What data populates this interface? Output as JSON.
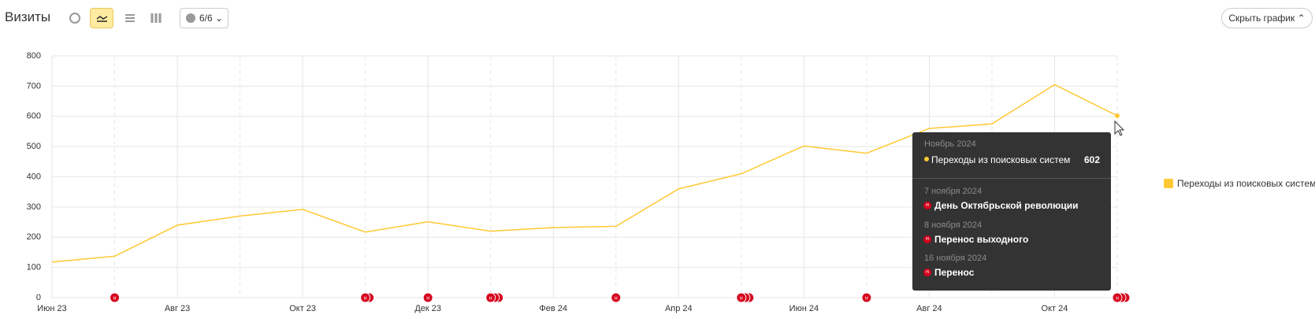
{
  "header": {
    "title": "Визиты",
    "comments": "6/6",
    "hide_button": "Скрыть график"
  },
  "chart_data": {
    "type": "line",
    "categories": [
      "Июн 23",
      null,
      "Авг 23",
      null,
      "Окт 23",
      null,
      "Дек 23",
      null,
      "Фев 24",
      null,
      "Апр 24",
      null,
      "Июн 24",
      null,
      "Авг 24",
      null,
      "Окт 24",
      null
    ],
    "series": [
      {
        "name": "Переходы из поисковых систем",
        "color": "#ffc933",
        "values": [
          118,
          137,
          240,
          270,
          292,
          217,
          251,
          220,
          232,
          236,
          360,
          410,
          502,
          478,
          560,
          575,
          705,
          602
        ]
      }
    ],
    "ylim": [
      0,
      800
    ],
    "yticks": [
      0,
      100,
      200,
      300,
      400,
      500,
      600,
      700,
      800
    ],
    "grid": true
  },
  "holiday_icon": "н",
  "tooltip": {
    "period": "Ноябрь 2024",
    "events": [
      {
        "date": "7 ноября 2024",
        "name": "День Октябрьской революции"
      },
      {
        "date": "8 ноября 2024",
        "name": "Перенос выходного"
      },
      {
        "date": "16 ноября 2024",
        "name": "Перенос"
      }
    ]
  }
}
